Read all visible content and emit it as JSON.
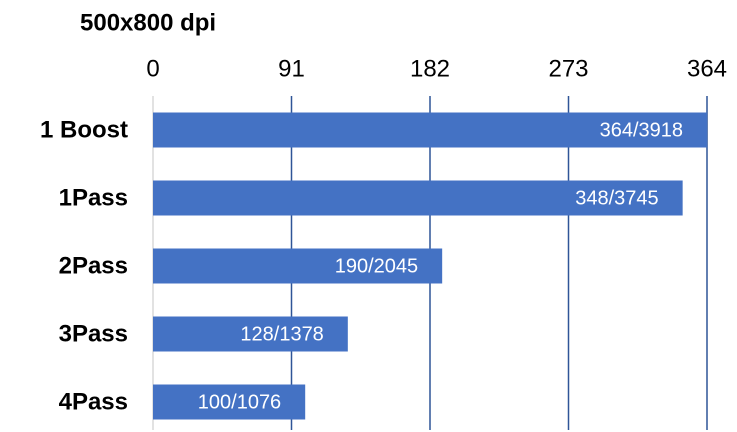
{
  "chart_data": {
    "type": "bar",
    "orientation": "horizontal",
    "title": "500x800 dpi",
    "categories": [
      "1 Boost",
      "1Pass",
      "2Pass",
      "3Pass",
      "4Pass"
    ],
    "values": [
      364,
      348,
      190,
      128,
      100
    ],
    "value_labels": [
      "364/3918",
      "348/3745",
      "190/2045",
      "128/1378",
      "100/1076"
    ],
    "color": "#4472c4",
    "xlim": [
      0,
      364
    ],
    "xticks": [
      0,
      91,
      182,
      273,
      364
    ],
    "grid": true
  }
}
